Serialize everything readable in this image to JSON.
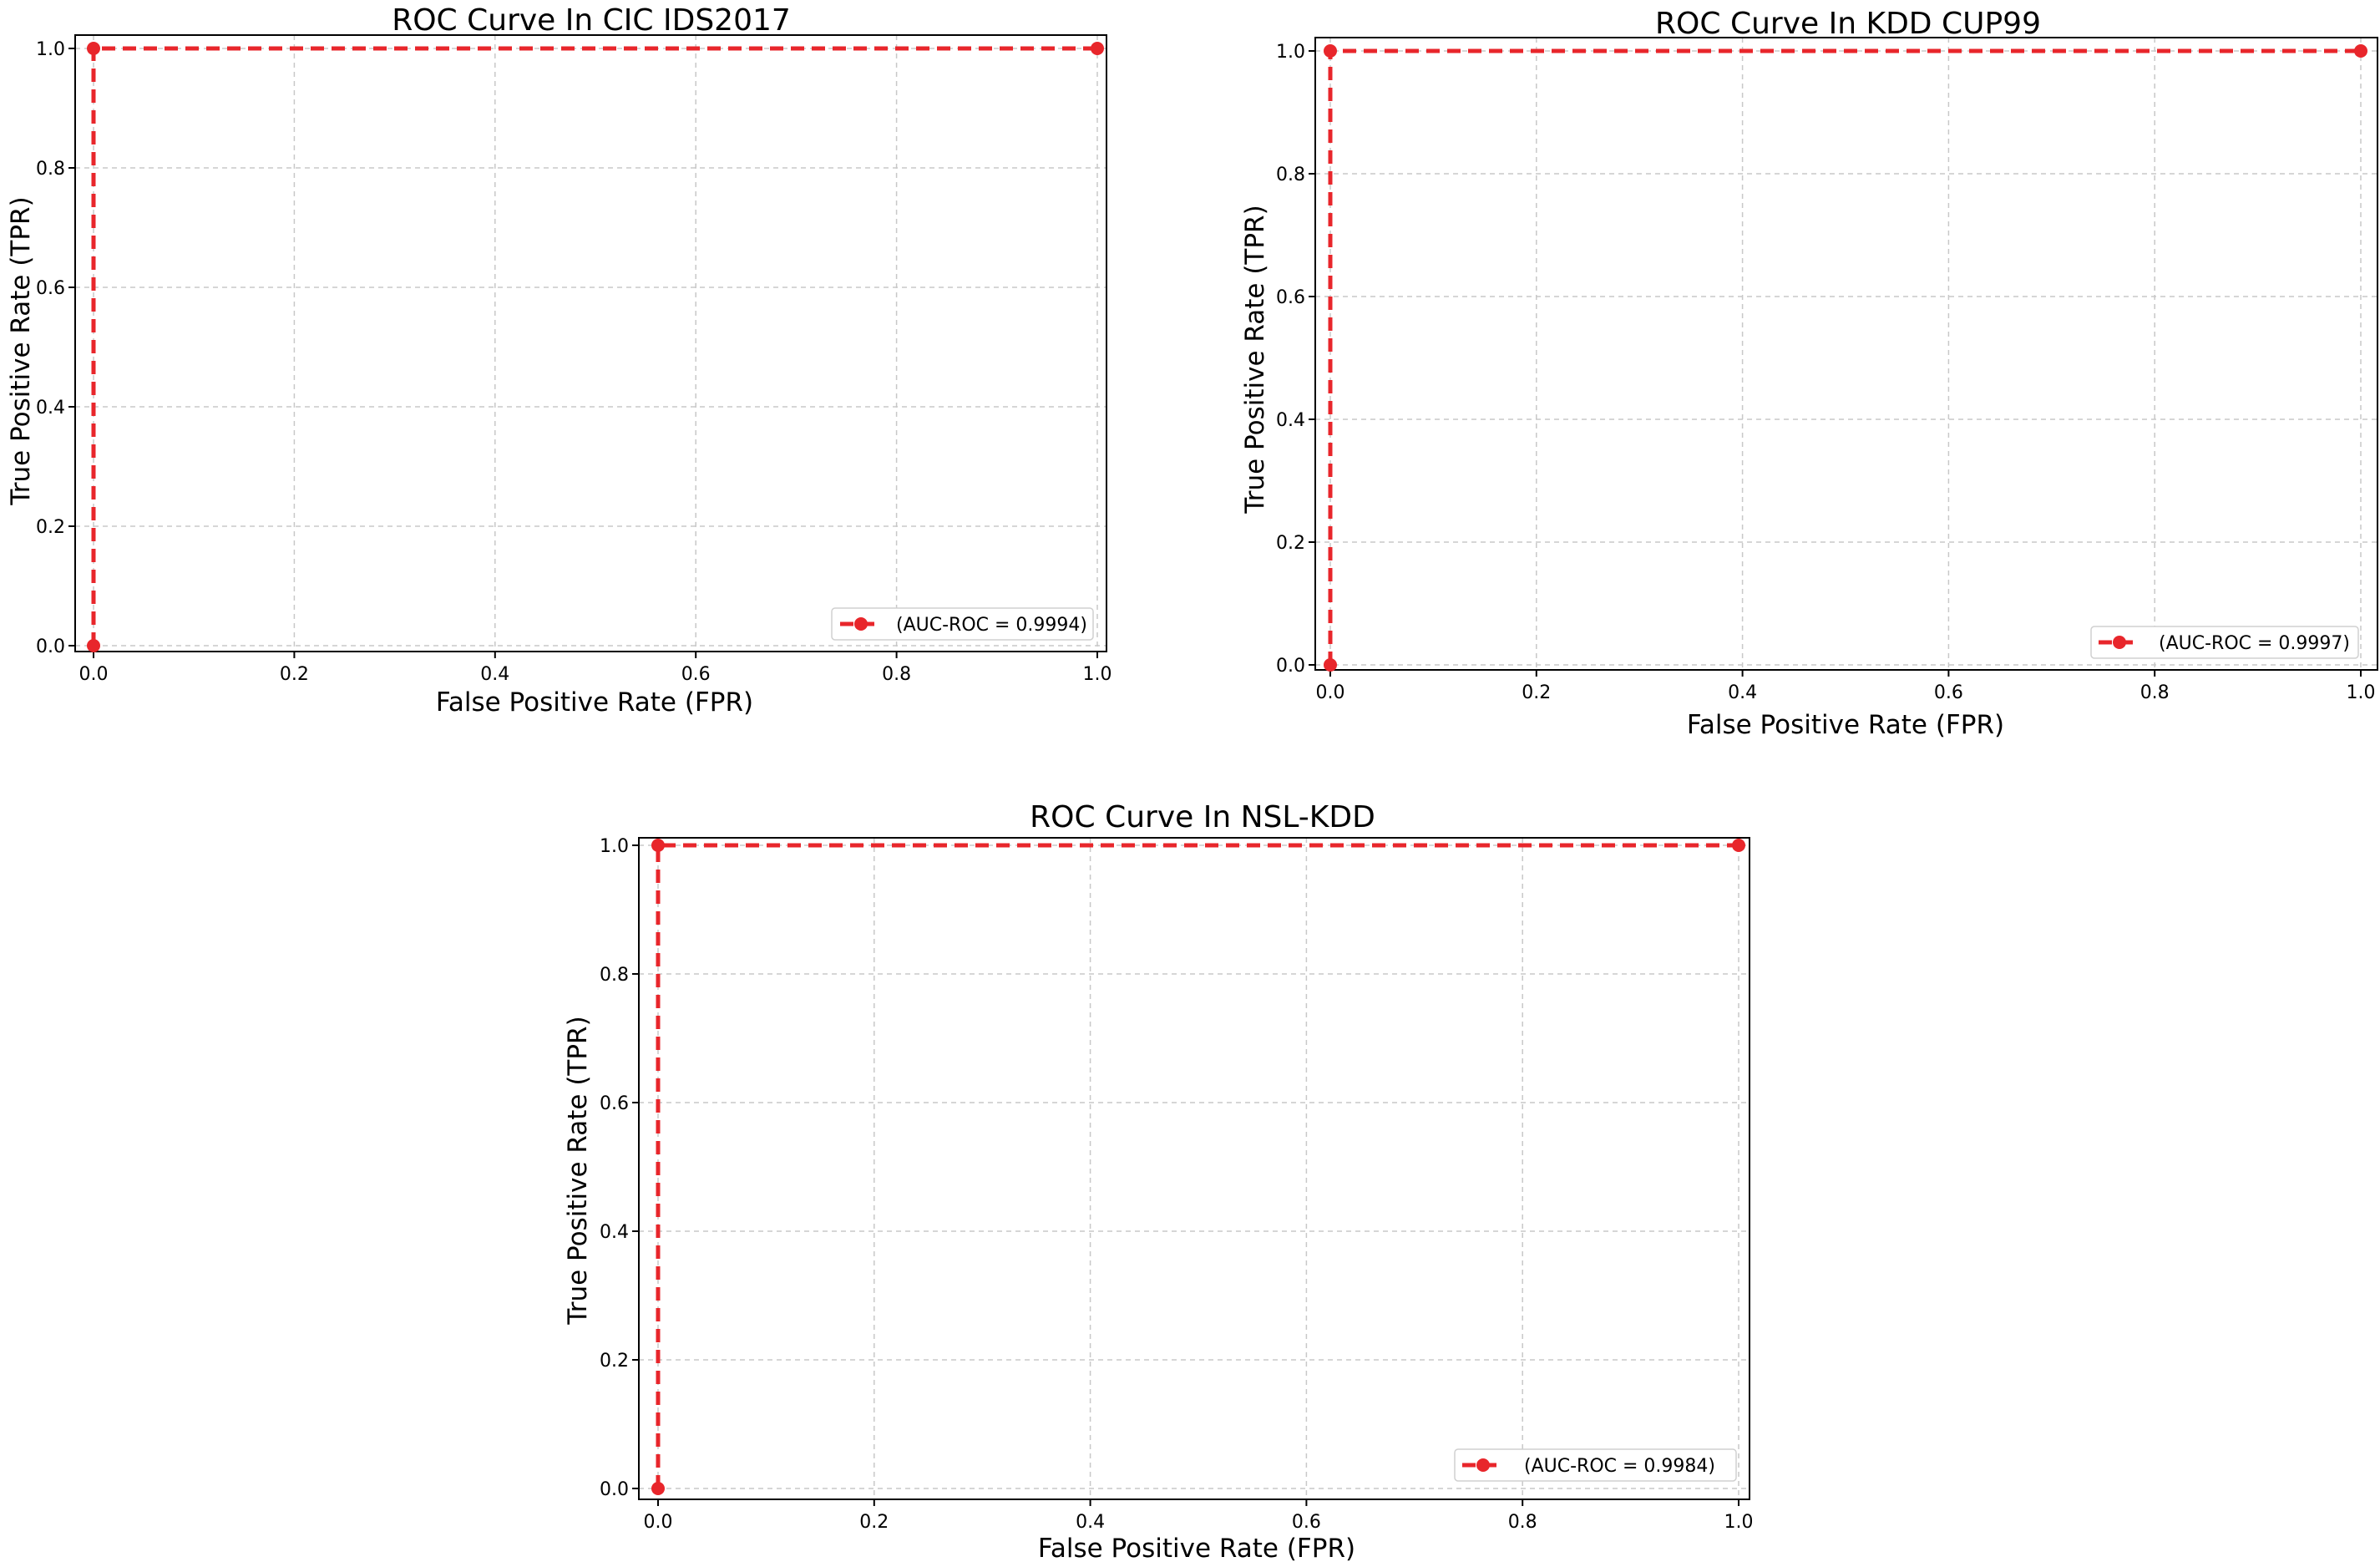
{
  "chart_data": [
    {
      "type": "line",
      "title": "ROC Curve In CIC IDS2017",
      "xlabel": "False Positive Rate (FPR)",
      "ylabel": "True Positive Rate (TPR)",
      "xlim": [
        0,
        1
      ],
      "ylim": [
        0,
        1
      ],
      "xticks": [
        "0.0",
        "0.2",
        "0.4",
        "0.6",
        "0.8",
        "1.0"
      ],
      "yticks": [
        "0.0",
        "0.2",
        "0.4",
        "0.6",
        "0.8",
        "1.0"
      ],
      "grid": true,
      "legend_position": "lower-right",
      "series": [
        {
          "name": "(AUC-ROC = 0.9994)",
          "x": [
            0,
            0,
            1
          ],
          "y": [
            0,
            1,
            1
          ],
          "color": "#e8262b"
        }
      ]
    },
    {
      "type": "line",
      "title": "ROC Curve In KDD CUP99",
      "xlabel": "False Positive Rate (FPR)",
      "ylabel": "True Positive Rate (TPR)",
      "xlim": [
        0,
        1
      ],
      "ylim": [
        0,
        1
      ],
      "xticks": [
        "0.0",
        "0.2",
        "0.4",
        "0.6",
        "0.8",
        "1.0"
      ],
      "yticks": [
        "0.0",
        "0.2",
        "0.4",
        "0.6",
        "0.8",
        "1.0"
      ],
      "grid": true,
      "legend_position": "lower-right",
      "series": [
        {
          "name": "(AUC-ROC = 0.9997)",
          "x": [
            0,
            0,
            1
          ],
          "y": [
            0,
            1,
            1
          ],
          "color": "#e8262b"
        }
      ]
    },
    {
      "type": "line",
      "title": "ROC Curve In NSL-KDD",
      "xlabel": "False Positive Rate (FPR)",
      "ylabel": "True Positive Rate (TPR)",
      "xlim": [
        0,
        1
      ],
      "ylim": [
        0,
        1
      ],
      "xticks": [
        "0.0",
        "0.2",
        "0.4",
        "0.6",
        "0.8",
        "1.0"
      ],
      "yticks": [
        "0.0",
        "0.2",
        "0.4",
        "0.6",
        "0.8",
        "1.0"
      ],
      "grid": true,
      "legend_position": "lower-right",
      "series": [
        {
          "name": "(AUC-ROC = 0.9984)",
          "x": [
            0,
            0,
            1
          ],
          "y": [
            0,
            1,
            1
          ],
          "color": "#e8262b"
        }
      ]
    }
  ]
}
